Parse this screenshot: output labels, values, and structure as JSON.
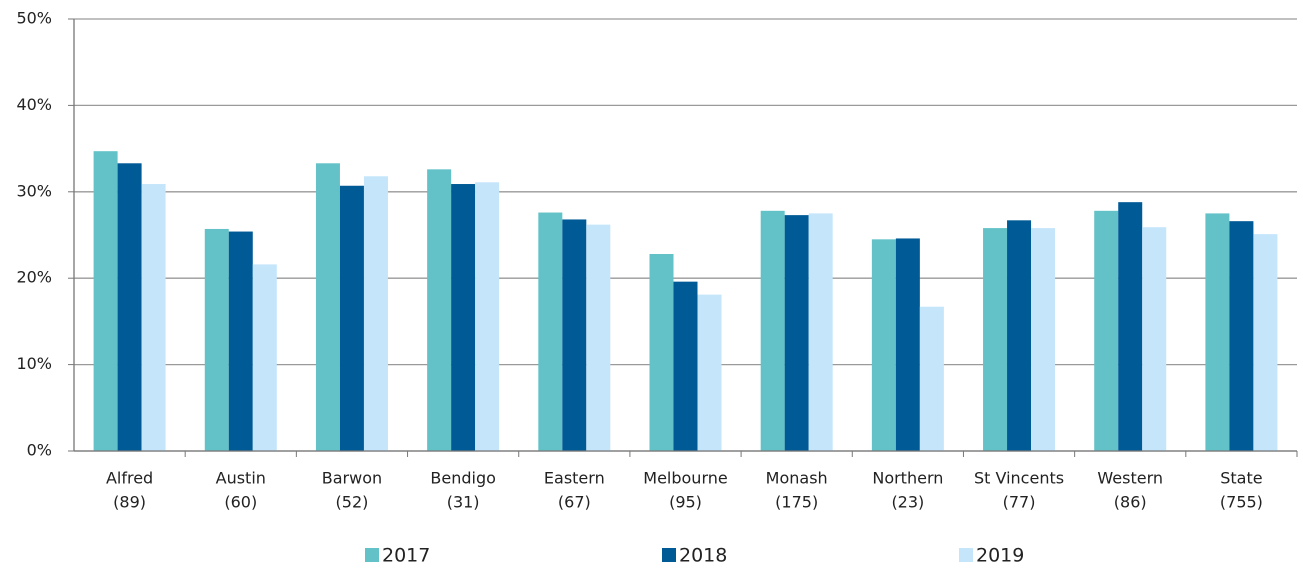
{
  "chart_data": {
    "type": "bar",
    "categories": [
      [
        "Alfred",
        "(89)"
      ],
      [
        "Austin",
        "(60)"
      ],
      [
        "Barwon",
        "(52)"
      ],
      [
        "Bendigo",
        "(31)"
      ],
      [
        "Eastern",
        "(67)"
      ],
      [
        "Melbourne",
        "(95)"
      ],
      [
        "Monash",
        "(175)"
      ],
      [
        "Northern",
        "(23)"
      ],
      [
        "St Vincents",
        "(77)"
      ],
      [
        "Western",
        "(86)"
      ],
      [
        "State",
        "(755)"
      ]
    ],
    "series": [
      {
        "name": "2017",
        "color": "#63c2c7",
        "values": [
          34.7,
          25.7,
          33.3,
          32.6,
          27.6,
          22.8,
          27.8,
          24.5,
          25.8,
          27.8,
          27.5
        ]
      },
      {
        "name": "2018",
        "color": "#005a96",
        "values": [
          33.3,
          25.4,
          30.7,
          30.9,
          26.8,
          19.6,
          27.3,
          24.6,
          26.7,
          28.8,
          26.6
        ]
      },
      {
        "name": "2019",
        "color": "#c5e5fb",
        "values": [
          30.9,
          21.6,
          31.8,
          31.1,
          26.2,
          18.1,
          27.5,
          16.7,
          25.8,
          25.9,
          25.1
        ]
      }
    ],
    "ylim": [
      0,
      50
    ],
    "yticks": [
      {
        "value": 0,
        "label": "0%"
      },
      {
        "value": 10,
        "label": "10%"
      },
      {
        "value": 20,
        "label": "20%"
      },
      {
        "value": 30,
        "label": "30%"
      },
      {
        "value": 40,
        "label": "40%"
      },
      {
        "value": 50,
        "label": "50%"
      }
    ],
    "grid": true,
    "legend": "bottom"
  }
}
